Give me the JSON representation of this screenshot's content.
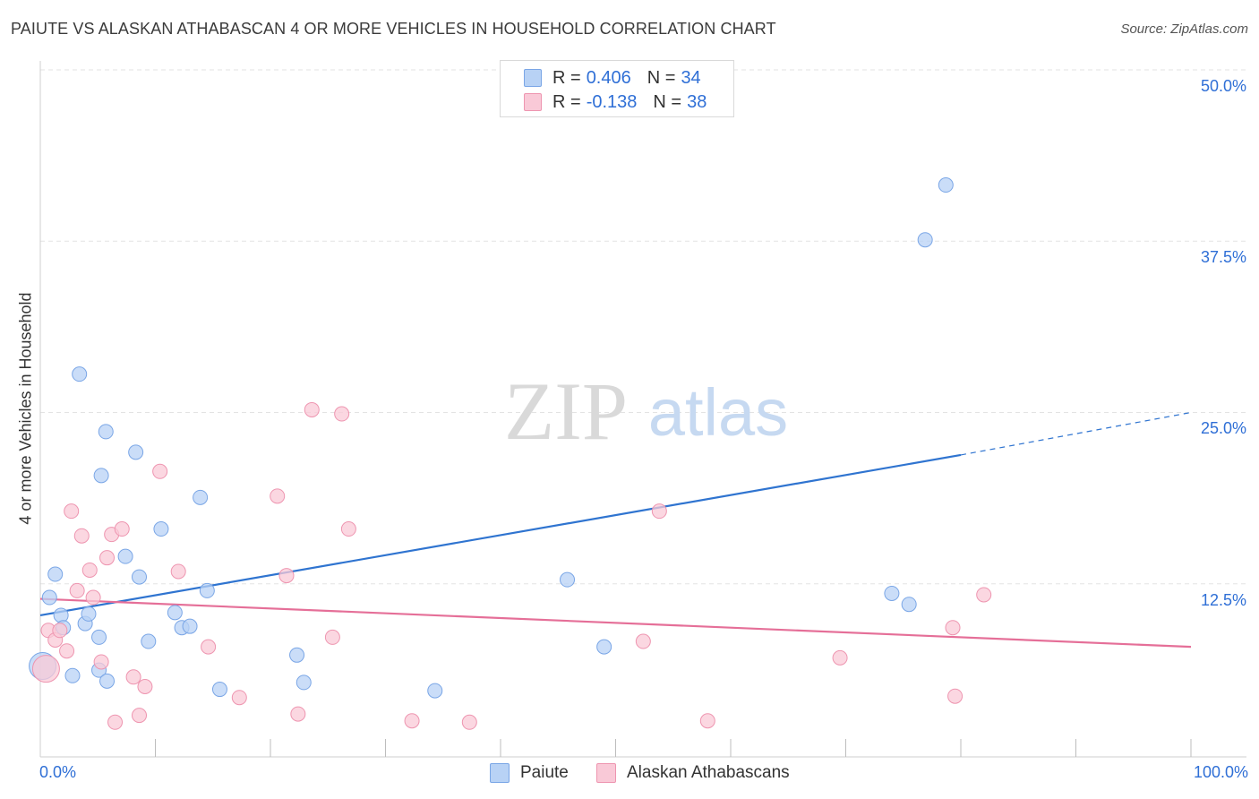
{
  "header": {
    "title": "PAIUTE VS ALASKAN ATHABASCAN 4 OR MORE VEHICLES IN HOUSEHOLD CORRELATION CHART",
    "source": "Source: ZipAtlas.com"
  },
  "legend_top": [
    {
      "r_label": "R =",
      "r_value": "0.406",
      "n_label": "N =",
      "n_value": "34"
    },
    {
      "r_label": "R =",
      "r_value": "-0.138",
      "n_label": "N =",
      "n_value": "38"
    }
  ],
  "colors": {
    "paiute_fill": "#b8d2f5",
    "paiute_stroke": "#7aa6e6",
    "paiute_line": "#2f74d0",
    "athabascan_fill": "#f9c9d7",
    "athabascan_stroke": "#ee95b0",
    "athabascan_line": "#e56f98",
    "tick_label": "#2f6fd6",
    "grid": "#e3e3e3"
  },
  "watermark": {
    "zip": "ZIP",
    "atlas": "atlas"
  },
  "chart_data": {
    "type": "scatter",
    "title": "PAIUTE VS ALASKAN ATHABASCAN 4 OR MORE VEHICLES IN HOUSEHOLD CORRELATION CHART",
    "xlabel": "",
    "ylabel": "4 or more Vehicles in Household",
    "xlim": [
      0,
      100
    ],
    "ylim": [
      0,
      50
    ],
    "x_tick_labels": [
      "0.0%",
      "100.0%"
    ],
    "y_ticks": [
      12.5,
      25.0,
      37.5,
      50.0
    ],
    "y_tick_labels": [
      "12.5%",
      "25.0%",
      "37.5%",
      "50.0%"
    ],
    "grid": true,
    "legend_position": "bottom",
    "series": [
      {
        "name": "Paiute",
        "r": 0.406,
        "n": 34,
        "trend": {
          "x0": 0,
          "y0": 10.2,
          "x1": 80,
          "y1": 21.9,
          "dashed_to_x": 100,
          "dashed_to_y": 25.0
        },
        "points": [
          [
            0.2,
            6.5
          ],
          [
            0.8,
            11.5
          ],
          [
            1.3,
            13.2
          ],
          [
            1.8,
            10.2
          ],
          [
            2.0,
            9.3
          ],
          [
            2.8,
            5.8
          ],
          [
            3.4,
            27.8
          ],
          [
            3.9,
            9.6
          ],
          [
            4.2,
            10.3
          ],
          [
            5.1,
            8.6
          ],
          [
            5.1,
            6.2
          ],
          [
            5.8,
            5.4
          ],
          [
            5.3,
            20.4
          ],
          [
            5.7,
            23.6
          ],
          [
            7.4,
            14.5
          ],
          [
            8.3,
            22.1
          ],
          [
            8.6,
            13.0
          ],
          [
            9.4,
            8.3
          ],
          [
            10.5,
            16.5
          ],
          [
            11.7,
            10.4
          ],
          [
            12.3,
            9.3
          ],
          [
            13.0,
            9.4
          ],
          [
            13.9,
            18.8
          ],
          [
            14.5,
            12.0
          ],
          [
            15.6,
            4.8
          ],
          [
            22.3,
            7.3
          ],
          [
            22.9,
            5.3
          ],
          [
            34.3,
            4.7
          ],
          [
            45.8,
            12.8
          ],
          [
            49.0,
            7.9
          ],
          [
            74.0,
            11.8
          ],
          [
            75.5,
            11.0
          ],
          [
            76.9,
            37.6
          ],
          [
            78.7,
            41.6
          ]
        ]
      },
      {
        "name": "Alaskan Athabascans",
        "r": -0.138,
        "n": 38,
        "trend": {
          "x0": 0,
          "y0": 11.4,
          "x1": 100,
          "y1": 7.9
        },
        "points": [
          [
            0.7,
            9.1
          ],
          [
            1.3,
            8.4
          ],
          [
            1.7,
            9.1
          ],
          [
            2.3,
            7.6
          ],
          [
            2.7,
            17.8
          ],
          [
            3.2,
            12.0
          ],
          [
            3.6,
            16.0
          ],
          [
            4.3,
            13.5
          ],
          [
            4.6,
            11.5
          ],
          [
            5.3,
            6.8
          ],
          [
            5.8,
            14.4
          ],
          [
            6.2,
            16.1
          ],
          [
            6.5,
            2.4
          ],
          [
            7.1,
            16.5
          ],
          [
            8.1,
            5.7
          ],
          [
            8.6,
            2.9
          ],
          [
            9.1,
            5.0
          ],
          [
            10.4,
            20.7
          ],
          [
            12.0,
            13.4
          ],
          [
            14.6,
            7.9
          ],
          [
            17.3,
            4.2
          ],
          [
            20.6,
            18.9
          ],
          [
            21.4,
            13.1
          ],
          [
            22.4,
            3.0
          ],
          [
            23.6,
            25.2
          ],
          [
            25.4,
            8.6
          ],
          [
            26.2,
            24.9
          ],
          [
            26.8,
            16.5
          ],
          [
            32.3,
            2.5
          ],
          [
            37.3,
            2.4
          ],
          [
            52.4,
            8.3
          ],
          [
            53.8,
            17.8
          ],
          [
            58.0,
            2.5
          ],
          [
            69.5,
            7.1
          ],
          [
            79.3,
            9.3
          ],
          [
            79.5,
            4.3
          ],
          [
            82.0,
            11.7
          ],
          [
            0.5,
            6.3
          ]
        ]
      }
    ]
  },
  "legend_bottom": [
    {
      "label": "Paiute"
    },
    {
      "label": "Alaskan Athabascans"
    }
  ]
}
